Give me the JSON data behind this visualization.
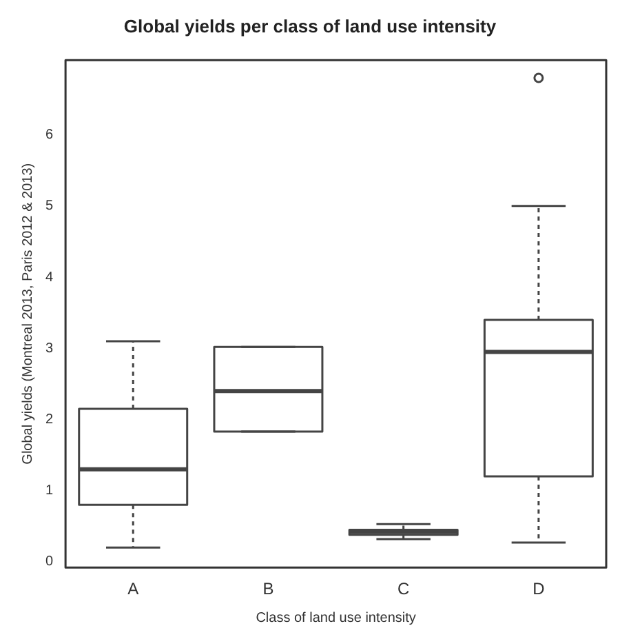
{
  "chart_data": {
    "type": "box",
    "title": "Global yields per class of land use intensity",
    "xlabel": "Class of land use intensity",
    "ylabel": "Global yields (Montreal 2013, Paris 2012 & 2013)",
    "categories": [
      "A",
      "B",
      "C",
      "D"
    ],
    "boxes": [
      {
        "low": 0.2,
        "q1": 0.8,
        "median": 1.3,
        "q3": 2.15,
        "high": 3.1
      },
      {
        "low": 1.83,
        "q1": 1.83,
        "median": 2.4,
        "q3": 3.02,
        "high": 3.02
      },
      {
        "low": 0.32,
        "q1": 0.38,
        "median": 0.42,
        "q3": 0.45,
        "high": 0.53
      },
      {
        "low": 0.27,
        "q1": 1.2,
        "median": 2.95,
        "q3": 3.4,
        "high": 5.0,
        "outliers": [
          6.8
        ]
      }
    ],
    "color": "#444444",
    "ylim": [
      -0.08,
      7.05
    ],
    "yticks": [
      0,
      1,
      2,
      3,
      4,
      5,
      6
    ],
    "grid": false,
    "legend": false
  }
}
